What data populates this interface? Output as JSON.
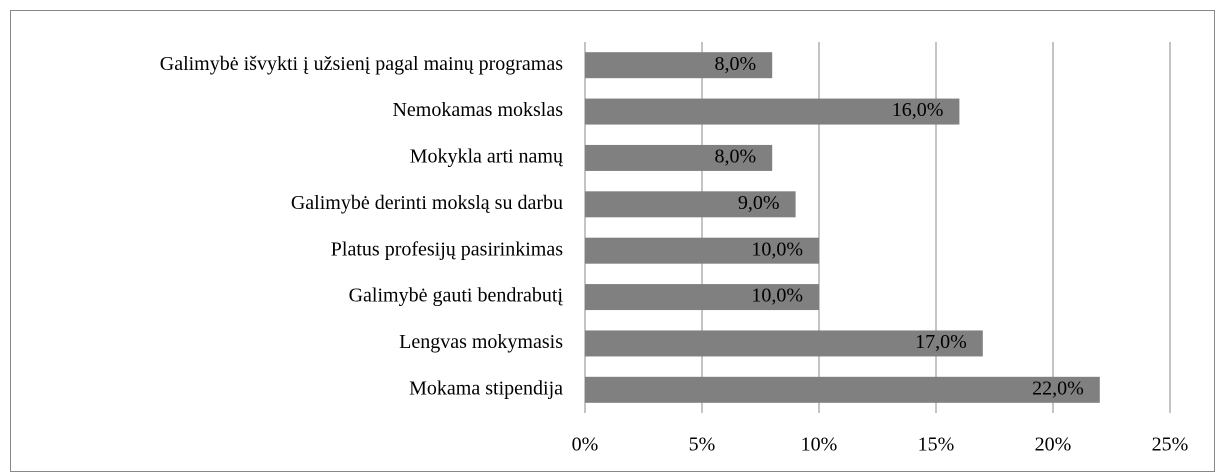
{
  "chart_data": {
    "type": "bar",
    "orientation": "horizontal",
    "categories": [
      "Galimybė išvykti į užsienį pagal mainų programas",
      "Nemokamas mokslas",
      "Mokykla arti namų",
      "Galimybė derinti mokslą su darbu",
      "Platus profesijų pasirinkimas",
      "Galimybė gauti bendrabutį",
      "Lengvas mokymasis",
      "Mokama stipendija"
    ],
    "values": [
      8,
      16,
      8,
      9,
      10,
      10,
      17,
      22
    ],
    "value_labels": [
      "8,0%",
      "16,0%",
      "8,0%",
      "9,0%",
      "10,0%",
      "10,0%",
      "17,0%",
      "22,0%"
    ],
    "color": "#808080",
    "xlim": [
      0,
      25
    ],
    "xticks": [
      {
        "value": 0,
        "label": "0%"
      },
      {
        "value": 5,
        "label": "5%"
      },
      {
        "value": 10,
        "label": "10%"
      },
      {
        "value": 15,
        "label": "15%"
      },
      {
        "value": 20,
        "label": "20%"
      },
      {
        "value": 25,
        "label": "25%"
      }
    ],
    "grid": true
  }
}
